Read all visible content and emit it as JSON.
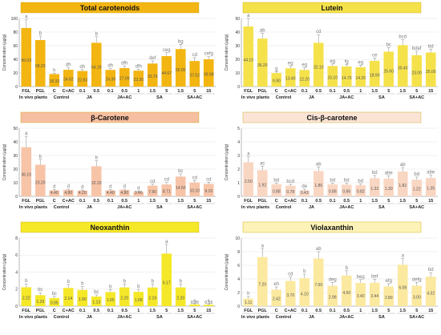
{
  "chart_data": [
    {
      "type": "bar",
      "title": "Total carotenoids",
      "title_bg": "#f3b511",
      "bar_color": "#f3b511",
      "ylabel": "Concentration (µg/g)",
      "ylim": [
        0,
        100
      ],
      "yticks": [
        0,
        20,
        40,
        60,
        80,
        100
      ],
      "categories": [
        "FGL",
        "PGL",
        "C",
        "C+AC",
        "0.1",
        "0.5",
        "0.1",
        "0.5",
        "1",
        "1.5",
        "5",
        "1.5",
        "5",
        "15"
      ],
      "values": [
        86.03,
        68.23,
        18.33,
        24.62,
        22.83,
        64.18,
        24.39,
        27.09,
        23.36,
        33.76,
        44.67,
        55.0,
        37.52,
        39.98
      ],
      "value_labels": [
        "86.03",
        "68.23",
        "18.33",
        "24.62",
        "22.83",
        "64.18",
        "24.39",
        "27.09",
        "23.36",
        "33.76",
        "44.67",
        "55.00",
        "37.52",
        "39.98"
      ],
      "errors": [
        12,
        6,
        1,
        3,
        2,
        9,
        2,
        3,
        2,
        4,
        5,
        7,
        5,
        4
      ],
      "letters": [
        "a",
        "b",
        "h",
        "dh",
        "dh",
        "b",
        "dh",
        "dfh",
        "dfh",
        "def",
        "ceg",
        "bg",
        "cd",
        "cefg"
      ]
    },
    {
      "type": "bar",
      "title": "Lutein",
      "title_bg": "#f5e24b",
      "bar_color": "#f5e24b",
      "ylabel": "Concentration (µg/g)",
      "ylim": [
        0,
        50
      ],
      "yticks": [
        0,
        10,
        20,
        30,
        40,
        50
      ],
      "categories": [
        "FGL",
        "PGL",
        "C",
        "C+AC",
        "0.1",
        "0.5",
        "0.1",
        "0.5",
        "1",
        "1.5",
        "5",
        "1.5",
        "5",
        "15"
      ],
      "values": [
        44.1,
        35.2,
        9.9,
        13.4,
        12.2,
        32.1,
        15.1,
        14.7,
        14.2,
        18.9,
        25.6,
        30.4,
        23.0,
        25.0
      ],
      "value_labels": [
        "44.10",
        "35.20",
        "9.90",
        "13.40",
        "12.20",
        "32.10",
        "15.10",
        "14.70",
        "14.20",
        "18.90",
        "25.60",
        "30.40",
        "23.00",
        "25.00"
      ],
      "errors": [
        6,
        4,
        1,
        1.5,
        1.5,
        6,
        1.5,
        1.5,
        1.5,
        2,
        3,
        4,
        3,
        2.5
      ],
      "letters": [
        "a",
        "ab",
        "g",
        "eg",
        "eg",
        "cd",
        "eg",
        "fg",
        "eg",
        "ce",
        "bc",
        "bcd",
        "bdef",
        "bd"
      ]
    },
    {
      "type": "bar",
      "title": "β-Carotene",
      "title_bg": "#f7bfa1",
      "bar_color": "#f7c4a8",
      "ylabel": "Concentration (µg/g)",
      "ylim": [
        0,
        50
      ],
      "yticks": [
        0,
        10,
        20,
        30,
        40,
        50
      ],
      "categories": [
        "FGL",
        "PGL",
        "C",
        "C+AC",
        "0.1",
        "0.5",
        "0.1",
        "0.5",
        "1",
        "1.5",
        "5",
        "1.5",
        "5",
        "15"
      ],
      "values": [
        36.1,
        23.2,
        4.4,
        4.8,
        4.2,
        22.1,
        4.4,
        4.8,
        3.46,
        7.9,
        8.71,
        14.5,
        10.1,
        9.15
      ],
      "value_labels": [
        "36.10",
        "23.20",
        "4.40",
        "4.80",
        "4.20",
        "22.10",
        "4.40",
        "4.80",
        "3.46",
        "7.90",
        "8.71",
        "14.50",
        "10.10",
        "9.15"
      ],
      "errors": [
        8,
        4,
        0.5,
        0.5,
        0.5,
        4,
        0.5,
        0.5,
        0.5,
        1,
        1.5,
        2,
        1.5,
        1.2
      ],
      "letters": [
        "a",
        "b",
        "d",
        "d",
        "d",
        "b",
        "d",
        "d",
        "d",
        "cd",
        "cd",
        "bc",
        "cd",
        "cd"
      ]
    },
    {
      "type": "bar",
      "title": "Cis-β-carotene",
      "title_bg": "#fbe4d6",
      "bar_color": "#f9d6c2",
      "ylabel": "Concentration (µg/g)",
      "ylim": [
        0,
        5
      ],
      "yticks": [
        0,
        1,
        2,
        3,
        4,
        5
      ],
      "categories": [
        "FGL",
        "PGL",
        "C",
        "C+AC",
        "0.1",
        "0.5",
        "0.1",
        "0.5",
        "1",
        "1.5",
        "5",
        "1.5",
        "5",
        "15"
      ],
      "values": [
        2.5,
        1.92,
        0.88,
        0.78,
        0.43,
        1.86,
        0.88,
        0.86,
        0.82,
        1.33,
        1.3,
        1.82,
        1.22,
        1.35
      ],
      "value_labels": [
        "2.50",
        "1.92",
        "0.88",
        "0.78",
        "0.43",
        "1.86",
        "0.88",
        "0.86",
        "0.82",
        "1.33",
        "1.30",
        "1.82",
        "1.22",
        "1.35"
      ],
      "errors": [
        0.4,
        0.3,
        0.1,
        0.1,
        0.1,
        0.3,
        0.1,
        0.1,
        0.1,
        0.2,
        0.2,
        0.3,
        0.2,
        0.2
      ],
      "letters": [
        "a",
        "ac",
        "bd",
        "bcd",
        "de",
        "ab",
        "bd",
        "bd",
        "bd",
        "bd",
        "abe",
        "ab",
        "bd",
        "abe"
      ]
    },
    {
      "type": "bar",
      "title": "Neoxanthin",
      "title_bg": "#f5e829",
      "bar_color": "#f5e829",
      "ylabel": "Concentration (µg/g)",
      "ylim": [
        0,
        8
      ],
      "yticks": [
        0,
        2,
        4,
        6,
        8
      ],
      "categories": [
        "FGL",
        "PGL",
        "C",
        "C+AC",
        "0.1",
        "0.5",
        "0.1",
        "0.5",
        "1",
        "1.5",
        "5",
        "1.5",
        "5",
        "15"
      ],
      "values": [
        2.22,
        1.29,
        0.95,
        2.14,
        1.9,
        1.13,
        1.65,
        2.2,
        1.68,
        2.19,
        6.17,
        2.2,
        0.2,
        0.16
      ],
      "value_labels": [
        "2.22",
        "1.29",
        "0.95",
        "2.14",
        "1.90",
        "1.13",
        "1.65",
        "2.20",
        "1.68",
        "2.19",
        "6.17",
        "2.20",
        "0.20",
        "0.16"
      ],
      "errors": [
        0.4,
        0.3,
        0.2,
        0.4,
        0.4,
        0.2,
        0.3,
        0.4,
        0.3,
        0.4,
        1.1,
        0.4,
        0.1,
        0.1
      ],
      "letters": [
        "b",
        "bc",
        "bc",
        "b",
        "b",
        "bc",
        "b",
        "b",
        "b",
        "b",
        "a",
        "b",
        "c",
        "c"
      ]
    },
    {
      "type": "bar",
      "title": "Violaxanthin",
      "title_bg": "#fdf3b8",
      "bar_color": "#fbe9a0",
      "ylabel": "Concentration (µg/g)",
      "ylim": [
        0,
        10
      ],
      "yticks": [
        0,
        2,
        4,
        6,
        8,
        10
      ],
      "categories": [
        "FGL",
        "PGL",
        "C",
        "C+AC",
        "0.1",
        "0.5",
        "0.1",
        "0.5",
        "1",
        "1.5",
        "5",
        "1.5",
        "5",
        "15"
      ],
      "values": [
        1.11,
        7.2,
        2.42,
        3.7,
        4.1,
        7.0,
        2.98,
        4.5,
        3.4,
        3.44,
        2.89,
        6.08,
        3.0,
        4.32
      ],
      "value_labels": [
        "1.11",
        "7.20",
        "2.42",
        "3.70",
        "4.10",
        "7.00",
        "2.98",
        "4.50",
        "3.40",
        "3.44",
        "2.89",
        "6.08",
        "3.00",
        "4.32"
      ],
      "errors": [
        0.3,
        1.2,
        0.4,
        0.6,
        0.6,
        1.0,
        0.5,
        0.7,
        0.5,
        0.5,
        0.4,
        0.9,
        0.5,
        0.6
      ],
      "letters": [
        "h",
        "a",
        "eh",
        "cd",
        "b",
        "ab",
        "deg",
        "b",
        "beg",
        "bef",
        "efg",
        "a",
        "defg",
        "bd"
      ]
    }
  ],
  "groups": [
    {
      "label": "In vivo plants",
      "start": 0,
      "end": 1
    },
    {
      "label": "Control",
      "start": 2,
      "end": 3
    },
    {
      "label": "JA",
      "start": 4,
      "end": 5
    },
    {
      "label": "JA+AC",
      "start": 6,
      "end": 8
    },
    {
      "label": "SA",
      "start": 9,
      "end": 10
    },
    {
      "label": "SA+AC",
      "start": 11,
      "end": 13
    }
  ]
}
